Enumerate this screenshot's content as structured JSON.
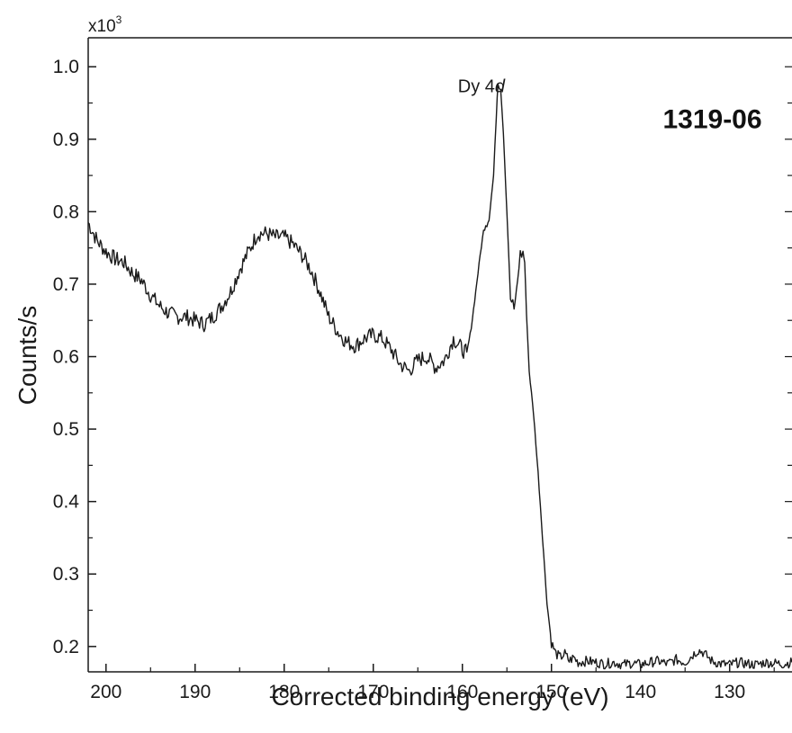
{
  "chart_data": {
    "type": "line",
    "xlabel": "Corrected binding energy (eV)",
    "ylabel": "Counts/s",
    "y_multiplier": {
      "base": "x10",
      "exponent": "3"
    },
    "xlim": [
      202,
      123
    ],
    "ylim": [
      0.165,
      1.04
    ],
    "x_reversed": true,
    "x_ticks": [
      200,
      190,
      180,
      170,
      160,
      150,
      140,
      130
    ],
    "x_tick_labels": [
      "200",
      "190",
      "180",
      "170",
      "160",
      "150",
      "140",
      "130"
    ],
    "y_ticks": [
      0.2,
      0.3,
      0.4,
      0.5,
      0.6,
      0.7,
      0.8,
      0.9,
      1.0
    ],
    "y_tick_labels": [
      "0.2",
      "0.3",
      "0.4",
      "0.5",
      "0.6",
      "0.7",
      "0.8",
      "0.9",
      "1.0"
    ],
    "grid": false,
    "annotations": [
      {
        "text": "Dy 4",
        "italic_suffix": "d",
        "x": 160.5,
        "y": 0.965
      },
      {
        "text": "1319-06",
        "x": 137.5,
        "y": 0.915,
        "style": "bold"
      }
    ],
    "series": [
      {
        "color": "#1a1a1a",
        "x": [
          202,
          201,
          200,
          199,
          198,
          197,
          196,
          195,
          194,
          193,
          192,
          191,
          190,
          189,
          188,
          187,
          186,
          185,
          184,
          183,
          182,
          181,
          180,
          179,
          178,
          177,
          176,
          175,
          174,
          173,
          172,
          171,
          170,
          169,
          168,
          167,
          166,
          165,
          164,
          163,
          162,
          161,
          160,
          159.5,
          159,
          158.5,
          158,
          157.5,
          157,
          156.5,
          156.2,
          156,
          155.7,
          155.4,
          155,
          154.6,
          154.2,
          153.8,
          153.5,
          153.2,
          153,
          152.8,
          152.5,
          152,
          151.5,
          151,
          150.5,
          150,
          149.5,
          149,
          148.5,
          148,
          147.5,
          147,
          146,
          145,
          144,
          143,
          142,
          141,
          140,
          139,
          138,
          137,
          136,
          135,
          134,
          133.5,
          133,
          132,
          131,
          130,
          129,
          128,
          127,
          126,
          125,
          124,
          123
        ],
        "y": [
          0.785,
          0.76,
          0.745,
          0.735,
          0.73,
          0.715,
          0.705,
          0.685,
          0.67,
          0.66,
          0.655,
          0.655,
          0.65,
          0.645,
          0.655,
          0.67,
          0.69,
          0.72,
          0.745,
          0.77,
          0.77,
          0.765,
          0.765,
          0.755,
          0.74,
          0.72,
          0.69,
          0.655,
          0.635,
          0.62,
          0.615,
          0.625,
          0.63,
          0.625,
          0.61,
          0.59,
          0.58,
          0.595,
          0.6,
          0.585,
          0.595,
          0.625,
          0.61,
          0.605,
          0.64,
          0.69,
          0.74,
          0.785,
          0.79,
          0.85,
          0.93,
          0.985,
          0.97,
          0.91,
          0.8,
          0.68,
          0.665,
          0.705,
          0.74,
          0.745,
          0.73,
          0.66,
          0.58,
          0.52,
          0.44,
          0.35,
          0.26,
          0.205,
          0.19,
          0.185,
          0.19,
          0.18,
          0.185,
          0.178,
          0.18,
          0.178,
          0.176,
          0.178,
          0.175,
          0.177,
          0.175,
          0.178,
          0.18,
          0.176,
          0.182,
          0.178,
          0.19,
          0.195,
          0.192,
          0.18,
          0.176,
          0.175,
          0.178,
          0.176,
          0.175,
          0.178,
          0.177,
          0.176,
          0.178
        ]
      }
    ]
  }
}
